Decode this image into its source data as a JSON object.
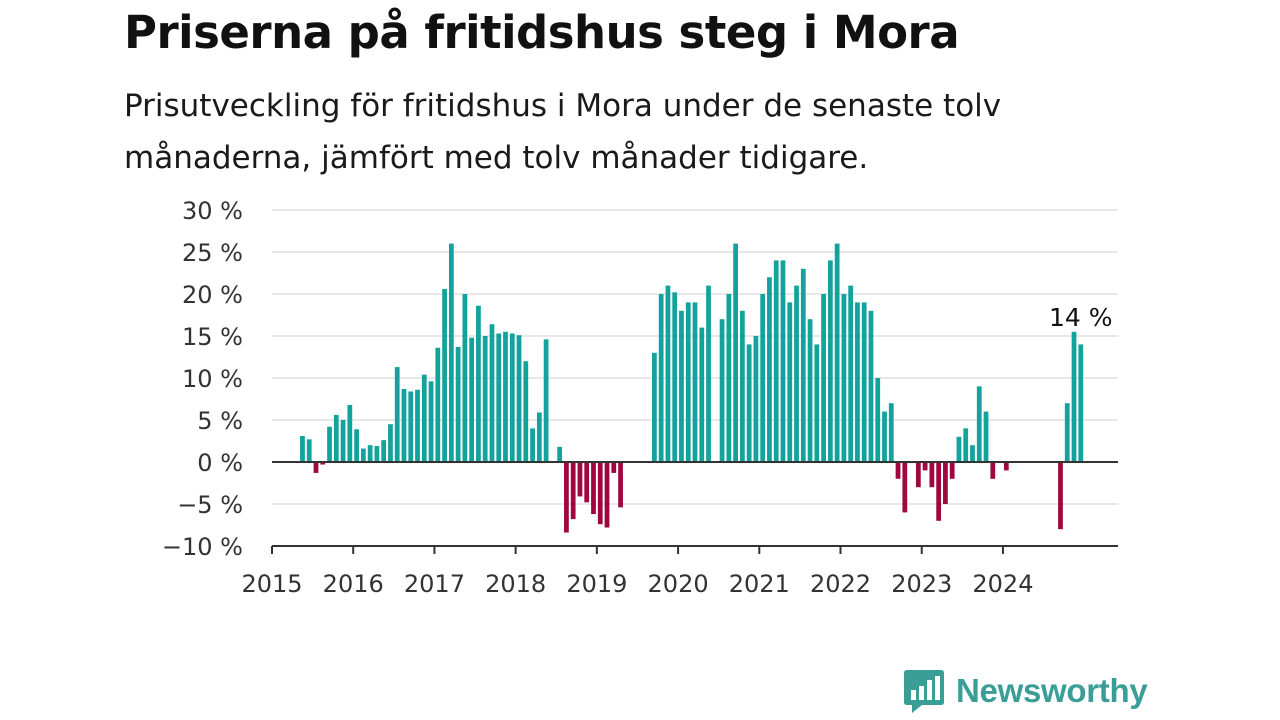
{
  "title": "Priserna på fritidshus steg i Mora",
  "subtitle": "Prisutveckling för fritidshus i Mora under de senaste tolv månaderna, jämfört med tolv månader tidigare.",
  "brand": {
    "name": "Newsworthy",
    "icon": "newsworthy-logo-icon"
  },
  "colors": {
    "positive": "#14a39c",
    "negative": "#a0073f",
    "grid": "#d9d9d9",
    "axis": "#333333"
  },
  "chart_data": {
    "type": "bar",
    "title": "Priserna på fritidshus steg i Mora",
    "xlabel": "",
    "ylabel": "",
    "x_range": [
      "2015-01",
      "2025-06"
    ],
    "ylim": [
      -10,
      30
    ],
    "y_ticks": [
      -10,
      -5,
      0,
      5,
      10,
      15,
      20,
      25,
      30
    ],
    "y_tick_labels": [
      "−10 %",
      "−5 %",
      "0 %",
      "5 %",
      "10 %",
      "15 %",
      "20 %",
      "25 %",
      "30 %"
    ],
    "x_ticks": [
      "2015",
      "2016",
      "2017",
      "2018",
      "2019",
      "2020",
      "2021",
      "2022",
      "2023",
      "2024"
    ],
    "grid": true,
    "annotation": {
      "month": "2024-12",
      "text": "14 %"
    },
    "series": [
      {
        "values": [
          [
            "2015-05",
            3.1
          ],
          [
            "2015-06",
            2.7
          ],
          [
            "2015-07",
            -1.3
          ],
          [
            "2015-08",
            -0.3
          ],
          [
            "2015-09",
            4.2
          ],
          [
            "2015-10",
            5.6
          ],
          [
            "2015-11",
            5.0
          ],
          [
            "2015-12",
            6.8
          ],
          [
            "2016-01",
            3.9
          ],
          [
            "2016-02",
            1.6
          ],
          [
            "2016-03",
            2.0
          ],
          [
            "2016-04",
            1.9
          ],
          [
            "2016-05",
            2.6
          ],
          [
            "2016-06",
            4.5
          ],
          [
            "2016-07",
            11.3
          ],
          [
            "2016-08",
            8.7
          ],
          [
            "2016-09",
            8.4
          ],
          [
            "2016-10",
            8.6
          ],
          [
            "2016-11",
            10.4
          ],
          [
            "2016-12",
            9.6
          ],
          [
            "2017-01",
            13.6
          ],
          [
            "2017-02",
            20.6
          ],
          [
            "2017-03",
            26.0
          ],
          [
            "2017-04",
            13.7
          ],
          [
            "2017-05",
            20.0
          ],
          [
            "2017-06",
            14.8
          ],
          [
            "2017-07",
            18.6
          ],
          [
            "2017-08",
            15.0
          ],
          [
            "2017-09",
            16.4
          ],
          [
            "2017-10",
            15.3
          ],
          [
            "2017-11",
            15.5
          ],
          [
            "2017-12",
            15.3
          ],
          [
            "2018-01",
            15.1
          ],
          [
            "2018-02",
            12.0
          ],
          [
            "2018-03",
            4.0
          ],
          [
            "2018-04",
            5.9
          ],
          [
            "2018-05",
            14.6
          ],
          [
            "2018-07",
            1.8
          ],
          [
            "2018-08",
            -8.4
          ],
          [
            "2018-09",
            -6.8
          ],
          [
            "2018-10",
            -4.1
          ],
          [
            "2018-11",
            -4.8
          ],
          [
            "2018-12",
            -6.2
          ],
          [
            "2019-01",
            -7.4
          ],
          [
            "2019-02",
            -7.8
          ],
          [
            "2019-03",
            -1.3
          ],
          [
            "2019-04",
            -5.4
          ],
          [
            "2019-09",
            13.0
          ],
          [
            "2019-10",
            20.0
          ],
          [
            "2019-11",
            21.0
          ],
          [
            "2019-12",
            20.2
          ],
          [
            "2020-01",
            18.0
          ],
          [
            "2020-02",
            19.0
          ],
          [
            "2020-03",
            19.0
          ],
          [
            "2020-04",
            16.0
          ],
          [
            "2020-05",
            21.0
          ],
          [
            "2020-07",
            17.0
          ],
          [
            "2020-08",
            20.0
          ],
          [
            "2020-09",
            26.0
          ],
          [
            "2020-10",
            18.0
          ],
          [
            "2020-11",
            14.0
          ],
          [
            "2020-12",
            15.0
          ],
          [
            "2021-01",
            20.0
          ],
          [
            "2021-02",
            22.0
          ],
          [
            "2021-03",
            24.0
          ],
          [
            "2021-04",
            24.0
          ],
          [
            "2021-05",
            19.0
          ],
          [
            "2021-06",
            21.0
          ],
          [
            "2021-07",
            23.0
          ],
          [
            "2021-08",
            17.0
          ],
          [
            "2021-09",
            14.0
          ],
          [
            "2021-10",
            20.0
          ],
          [
            "2021-11",
            24.0
          ],
          [
            "2021-12",
            26.0
          ],
          [
            "2022-01",
            20.0
          ],
          [
            "2022-02",
            21.0
          ],
          [
            "2022-03",
            19.0
          ],
          [
            "2022-04",
            19.0
          ],
          [
            "2022-05",
            18.0
          ],
          [
            "2022-06",
            10.0
          ],
          [
            "2022-07",
            6.0
          ],
          [
            "2022-08",
            7.0
          ],
          [
            "2022-09",
            -2.0
          ],
          [
            "2022-10",
            -6.0
          ],
          [
            "2022-12",
            -3.0
          ],
          [
            "2023-01",
            -1.0
          ],
          [
            "2023-02",
            -3.0
          ],
          [
            "2023-03",
            -7.0
          ],
          [
            "2023-04",
            -5.0
          ],
          [
            "2023-05",
            -2.0
          ],
          [
            "2023-06",
            3.0
          ],
          [
            "2023-07",
            4.0
          ],
          [
            "2023-08",
            2.0
          ],
          [
            "2023-09",
            9.0
          ],
          [
            "2023-10",
            6.0
          ],
          [
            "2023-11",
            -2.0
          ],
          [
            "2024-01",
            -1.0
          ],
          [
            "2024-09",
            -8.0
          ],
          [
            "2024-10",
            7.0
          ],
          [
            "2024-11",
            15.5
          ],
          [
            "2024-12",
            14.0
          ]
        ]
      }
    ]
  }
}
